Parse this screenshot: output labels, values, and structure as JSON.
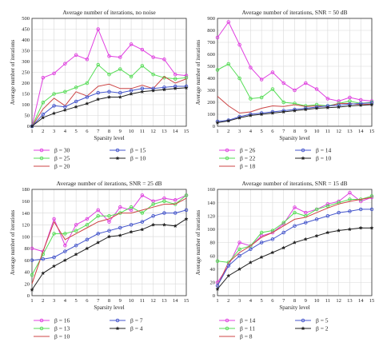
{
  "chart_data": [
    {
      "type": "line",
      "title": "Average number of iterations, no noise",
      "xlabel": "Sparsity level",
      "ylabel": "Average number of iterations",
      "x": [
        1,
        2,
        3,
        4,
        5,
        6,
        7,
        8,
        9,
        10,
        11,
        12,
        13,
        14,
        15
      ],
      "xlim": [
        1,
        15
      ],
      "ylim": [
        0,
        500
      ],
      "yticks": [
        0,
        50,
        100,
        150,
        200,
        250,
        300,
        350,
        400,
        450,
        500
      ],
      "grid": true,
      "legend_placement": "below",
      "series": [
        {
          "name": "β = 30",
          "color": "#e040e0",
          "marker": "circle",
          "values": [
            0,
            225,
            245,
            290,
            330,
            310,
            450,
            325,
            320,
            380,
            355,
            320,
            310,
            240,
            235
          ]
        },
        {
          "name": "β = 25",
          "color": "#55dd55",
          "marker": "circle",
          "values": [
            0,
            110,
            150,
            160,
            180,
            200,
            285,
            240,
            265,
            230,
            280,
            240,
            225,
            220,
            225
          ]
        },
        {
          "name": "β = 20",
          "color": "#cc4444",
          "marker": "none",
          "values": [
            0,
            80,
            130,
            95,
            160,
            140,
            185,
            195,
            175,
            175,
            190,
            175,
            230,
            200,
            220
          ]
        },
        {
          "name": "β = 15",
          "color": "#4455cc",
          "marker": "circle",
          "values": [
            0,
            55,
            95,
            90,
            115,
            135,
            155,
            160,
            155,
            165,
            175,
            175,
            180,
            185,
            185
          ]
        },
        {
          "name": "β = 10",
          "color": "#222222",
          "marker": "star",
          "values": [
            0,
            40,
            60,
            75,
            90,
            105,
            125,
            135,
            135,
            150,
            160,
            165,
            170,
            175,
            178
          ]
        }
      ]
    },
    {
      "type": "line",
      "title": "Average number of iterations, SNR = 50 dB",
      "xlabel": "Sparsity level",
      "ylabel": "Average number of iterations",
      "x": [
        1,
        2,
        3,
        4,
        5,
        6,
        7,
        8,
        9,
        10,
        11,
        12,
        13,
        14,
        15
      ],
      "xlim": [
        1,
        15
      ],
      "ylim": [
        0,
        900
      ],
      "yticks": [
        0,
        100,
        200,
        300,
        400,
        500,
        600,
        700,
        800,
        900
      ],
      "grid": true,
      "legend_placement": "below",
      "series": [
        {
          "name": "β = 26",
          "color": "#e040e0",
          "marker": "circle",
          "values": [
            740,
            870,
            680,
            490,
            390,
            450,
            360,
            300,
            360,
            310,
            230,
            210,
            240,
            220,
            210
          ]
        },
        {
          "name": "β = 22",
          "color": "#55dd55",
          "marker": "circle",
          "values": [
            470,
            520,
            400,
            230,
            240,
            310,
            200,
            190,
            170,
            180,
            170,
            190,
            210,
            190,
            200
          ]
        },
        {
          "name": "β = 18",
          "color": "#cc4444",
          "marker": "none",
          "values": [
            250,
            170,
            110,
            120,
            150,
            170,
            165,
            180,
            165,
            170,
            165,
            190,
            190,
            180,
            185
          ]
        },
        {
          "name": "β = 14",
          "color": "#4455cc",
          "marker": "circle",
          "values": [
            40,
            50,
            80,
            100,
            110,
            120,
            130,
            140,
            150,
            160,
            170,
            175,
            185,
            190,
            195
          ]
        },
        {
          "name": "β = 10",
          "color": "#222222",
          "marker": "star",
          "values": [
            30,
            45,
            70,
            90,
            100,
            110,
            120,
            130,
            140,
            150,
            155,
            160,
            170,
            175,
            180
          ]
        }
      ]
    },
    {
      "type": "line",
      "title": "Average number of iterations, SNR = 25 dB",
      "xlabel": "Sparsity level",
      "ylabel": "Average number of iterations",
      "x": [
        1,
        2,
        3,
        4,
        5,
        6,
        7,
        8,
        9,
        10,
        11,
        12,
        13,
        14,
        15
      ],
      "xlim": [
        1,
        15
      ],
      "ylim": [
        0,
        180
      ],
      "yticks": [
        0,
        20,
        40,
        60,
        80,
        100,
        120,
        140,
        160,
        180
      ],
      "grid": true,
      "legend_placement": "below",
      "series": [
        {
          "name": "β = 16",
          "color": "#e040e0",
          "marker": "circle",
          "values": [
            80,
            75,
            130,
            85,
            120,
            130,
            145,
            125,
            150,
            145,
            170,
            160,
            165,
            162,
            170
          ]
        },
        {
          "name": "β = 13",
          "color": "#55dd55",
          "marker": "circle",
          "values": [
            35,
            70,
            105,
            105,
            110,
            120,
            135,
            135,
            140,
            150,
            140,
            155,
            160,
            155,
            170
          ]
        },
        {
          "name": "β = 10",
          "color": "#cc4444",
          "marker": "none",
          "values": [
            20,
            75,
            125,
            95,
            105,
            115,
            125,
            130,
            140,
            140,
            145,
            150,
            155,
            155,
            165
          ]
        },
        {
          "name": "β = 7",
          "color": "#4455cc",
          "marker": "circle",
          "values": [
            60,
            62,
            65,
            75,
            85,
            95,
            105,
            110,
            115,
            120,
            125,
            135,
            140,
            140,
            145
          ]
        },
        {
          "name": "β = 4",
          "color": "#222222",
          "marker": "star",
          "values": [
            10,
            38,
            50,
            60,
            70,
            80,
            90,
            100,
            102,
            108,
            112,
            120,
            120,
            118,
            130
          ]
        }
      ]
    },
    {
      "type": "line",
      "title": "Average number of iterations, SNR = 15 dB",
      "xlabel": "Sparsity level",
      "ylabel": "Average number of iterations",
      "x": [
        1,
        2,
        3,
        4,
        5,
        6,
        7,
        8,
        9,
        10,
        11,
        12,
        13,
        14,
        15
      ],
      "xlim": [
        1,
        15
      ],
      "ylim": [
        0,
        160
      ],
      "yticks": [
        0,
        20,
        40,
        60,
        80,
        100,
        120,
        140,
        160
      ],
      "grid": true,
      "legend_placement": "below",
      "series": [
        {
          "name": "β = 14",
          "color": "#e040e0",
          "marker": "circle",
          "values": [
            20,
            45,
            80,
            75,
            90,
            95,
            108,
            133,
            125,
            130,
            138,
            142,
            155,
            142,
            148
          ]
        },
        {
          "name": "β = 11",
          "color": "#55dd55",
          "marker": "circle",
          "values": [
            52,
            50,
            70,
            75,
            95,
            98,
            110,
            125,
            120,
            130,
            135,
            140,
            145,
            145,
            150
          ]
        },
        {
          "name": "β = 8",
          "color": "#cc4444",
          "marker": "none",
          "values": [
            15,
            50,
            65,
            75,
            88,
            95,
            105,
            115,
            118,
            125,
            132,
            138,
            142,
            145,
            148
          ]
        },
        {
          "name": "β = 5",
          "color": "#4455cc",
          "marker": "circle",
          "values": [
            15,
            45,
            60,
            70,
            80,
            85,
            95,
            105,
            110,
            115,
            120,
            125,
            127,
            130,
            130
          ]
        },
        {
          "name": "β = 2",
          "color": "#222222",
          "marker": "star",
          "values": [
            10,
            30,
            40,
            50,
            58,
            65,
            72,
            80,
            85,
            90,
            95,
            98,
            100,
            102,
            102
          ]
        }
      ]
    }
  ]
}
